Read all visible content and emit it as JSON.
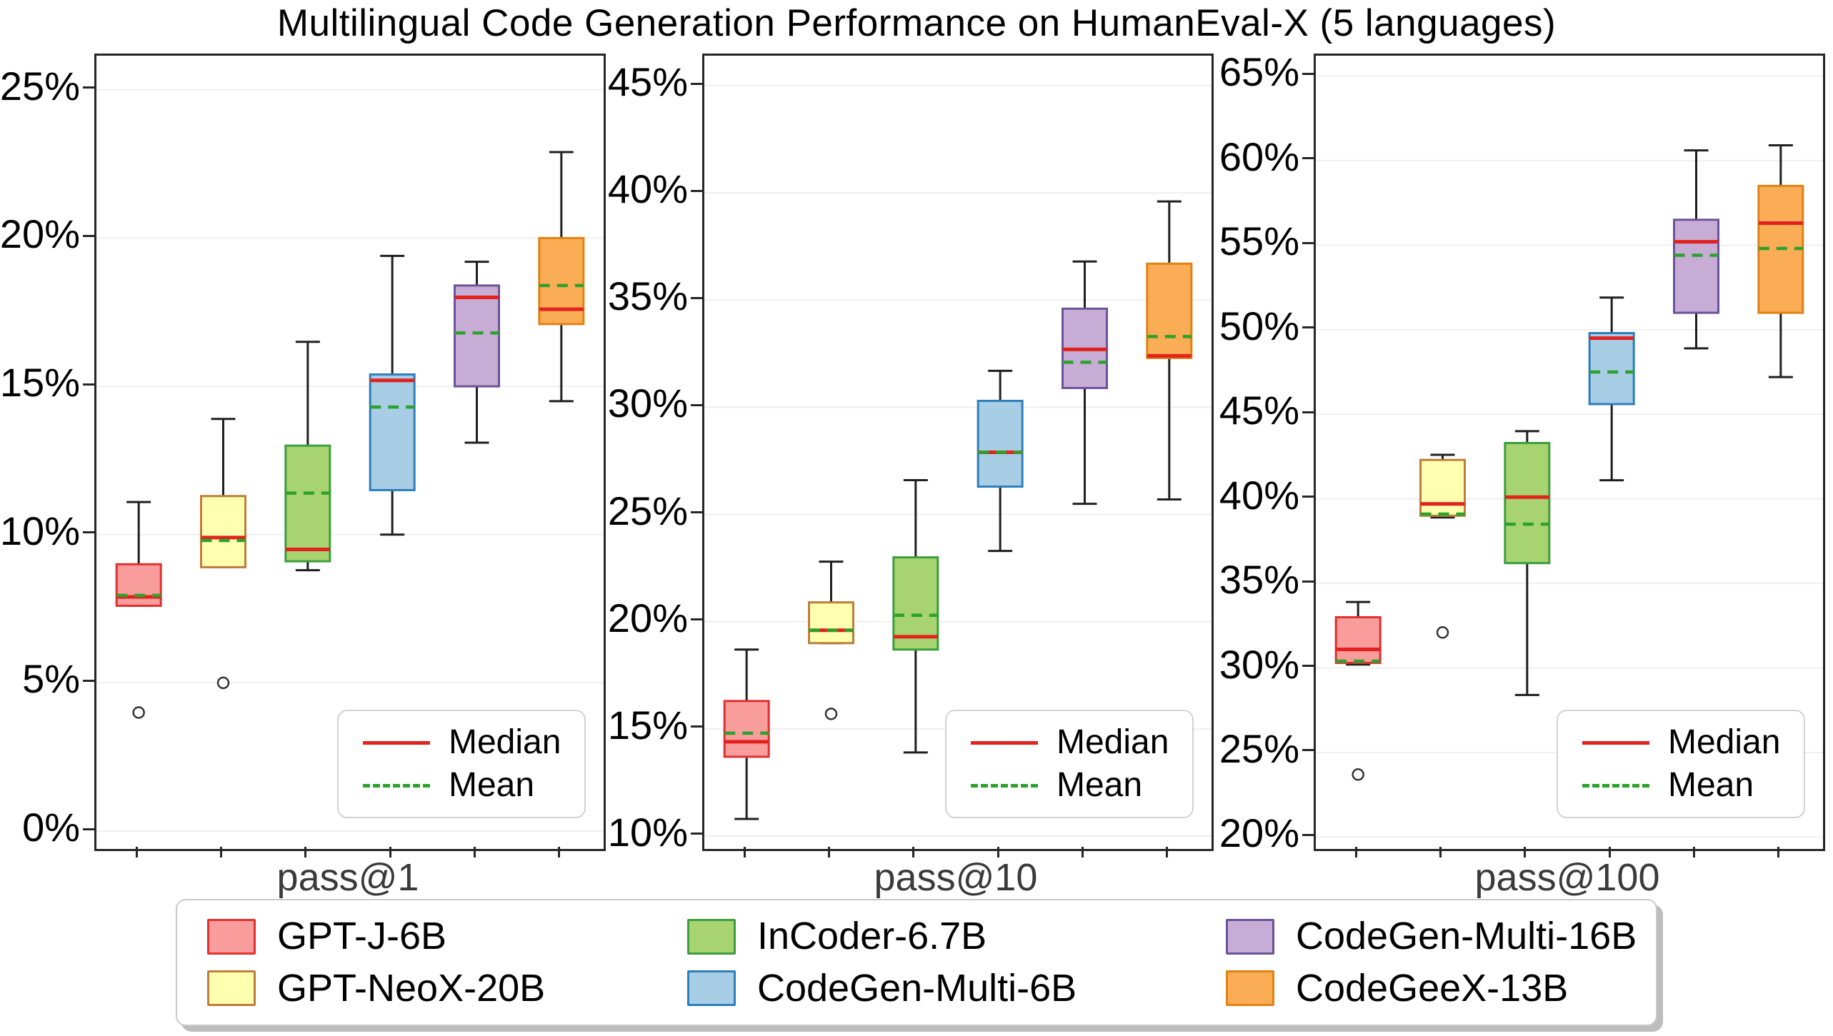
{
  "title": "Multilingual Code Generation Performance on HumanEval-X (5 languages)",
  "inner_legend": {
    "median_label": "Median",
    "mean_label": "Mean"
  },
  "style": {
    "median_color": "#e3211f",
    "mean_color": "#2ca22c",
    "whisker_color": "#1f1f1f",
    "grid_color": "#efefef",
    "spine_color": "#262626",
    "flier_edge_color": "#333333"
  },
  "legend": {
    "models": [
      {
        "label": "GPT-J-6B",
        "fill": "#f89c9c",
        "edge": "#e03030"
      },
      {
        "label": "GPT-NeoX-20B",
        "fill": "#ffffb0",
        "edge": "#be7d3c"
      },
      {
        "label": "InCoder-6.7B",
        "fill": "#a7d470",
        "edge": "#3c9d3c"
      },
      {
        "label": "CodeGen-Multi-6B",
        "fill": "#a8cee5",
        "edge": "#2e7ebc"
      },
      {
        "label": "CodeGen-Multi-16B",
        "fill": "#c7add6",
        "edge": "#6b5399"
      },
      {
        "label": "CodeGeeX-13B",
        "fill": "#fbad55",
        "edge": "#e08214"
      }
    ],
    "column_order": [
      [
        0,
        1
      ],
      [
        2,
        3
      ],
      [
        4,
        5
      ]
    ]
  },
  "chart_data": [
    {
      "type": "box",
      "xlabel": "pass@1",
      "ylim": [
        -0.6,
        26.15
      ],
      "yticks": [
        0,
        5,
        10,
        15,
        20,
        25
      ],
      "yticklabels": [
        "0%",
        "5%",
        "10%",
        "15%",
        "20%",
        "25%"
      ],
      "grid": true,
      "legend_position": "lower right",
      "categories": [
        "GPT-J-6B",
        "GPT-NeoX-20B",
        "InCoder-6.7B",
        "CodeGen-Multi-6B",
        "CodeGen-Multi-16B",
        "CodeGeeX-13B"
      ],
      "boxes": [
        {
          "model": "GPT-J-6B",
          "whislo": 7.6,
          "q1": 7.6,
          "med": 7.9,
          "mean": 7.95,
          "q3": 9.0,
          "whishi": 11.1,
          "fliers": [
            4.0
          ]
        },
        {
          "model": "GPT-NeoX-20B",
          "whislo": 8.9,
          "q1": 8.9,
          "med": 9.9,
          "mean": 9.8,
          "q3": 11.3,
          "whishi": 13.9,
          "fliers": [
            5.0
          ]
        },
        {
          "model": "InCoder-6.7B",
          "whislo": 8.8,
          "q1": 9.1,
          "med": 9.5,
          "mean": 11.4,
          "q3": 13.0,
          "whishi": 16.5,
          "fliers": []
        },
        {
          "model": "CodeGen-Multi-6B",
          "whislo": 10.0,
          "q1": 11.5,
          "med": 15.2,
          "mean": 14.3,
          "q3": 15.4,
          "whishi": 19.4,
          "fliers": []
        },
        {
          "model": "CodeGen-Multi-16B",
          "whislo": 13.1,
          "q1": 15.0,
          "med": 18.0,
          "mean": 16.8,
          "q3": 18.4,
          "whishi": 19.2,
          "fliers": []
        },
        {
          "model": "CodeGeeX-13B",
          "whislo": 14.5,
          "q1": 17.1,
          "med": 17.6,
          "mean": 18.4,
          "q3": 20.0,
          "whishi": 22.9,
          "fliers": []
        }
      ]
    },
    {
      "type": "box",
      "xlabel": "pass@10",
      "ylim": [
        9.4,
        46.4
      ],
      "yticks": [
        10,
        15,
        20,
        25,
        30,
        35,
        40,
        45
      ],
      "yticklabels": [
        "10%",
        "15%",
        "20%",
        "25%",
        "30%",
        "35%",
        "40%",
        "45%"
      ],
      "grid": true,
      "legend_position": "lower right",
      "categories": [
        "GPT-J-6B",
        "GPT-NeoX-20B",
        "InCoder-6.7B",
        "CodeGen-Multi-6B",
        "CodeGen-Multi-16B",
        "CodeGeeX-13B"
      ],
      "boxes": [
        {
          "model": "GPT-J-6B",
          "whislo": 10.8,
          "q1": 13.7,
          "med": 14.4,
          "mean": 14.8,
          "q3": 16.3,
          "whishi": 18.7,
          "fliers": []
        },
        {
          "model": "GPT-NeoX-20B",
          "whislo": 19.0,
          "q1": 19.0,
          "med": 19.6,
          "mean": 19.6,
          "q3": 20.9,
          "whishi": 22.8,
          "fliers": [
            15.7
          ]
        },
        {
          "model": "InCoder-6.7B",
          "whislo": 13.9,
          "q1": 18.7,
          "med": 19.3,
          "mean": 20.3,
          "q3": 23.0,
          "whishi": 26.6,
          "fliers": []
        },
        {
          "model": "CodeGen-Multi-6B",
          "whislo": 23.3,
          "q1": 26.3,
          "med": 27.9,
          "mean": 27.9,
          "q3": 30.3,
          "whishi": 31.7,
          "fliers": []
        },
        {
          "model": "CodeGen-Multi-16B",
          "whislo": 25.5,
          "q1": 30.9,
          "med": 32.7,
          "mean": 32.1,
          "q3": 34.6,
          "whishi": 36.8,
          "fliers": []
        },
        {
          "model": "CodeGeeX-13B",
          "whislo": 25.7,
          "q1": 32.3,
          "med": 32.4,
          "mean": 33.3,
          "q3": 36.7,
          "whishi": 39.6,
          "fliers": []
        }
      ]
    },
    {
      "type": "box",
      "xlabel": "pass@100",
      "ylim": [
        19.3,
        66.2
      ],
      "yticks": [
        20,
        25,
        30,
        35,
        40,
        45,
        50,
        55,
        60,
        65
      ],
      "yticklabels": [
        "20%",
        "25%",
        "30%",
        "35%",
        "40%",
        "45%",
        "50%",
        "55%",
        "60%",
        "65%"
      ],
      "grid": true,
      "legend_position": "lower right",
      "categories": [
        "GPT-J-6B",
        "GPT-NeoX-20B",
        "InCoder-6.7B",
        "CodeGen-Multi-6B",
        "CodeGen-Multi-16B",
        "CodeGeeX-13B"
      ],
      "boxes": [
        {
          "model": "GPT-J-6B",
          "whislo": 30.2,
          "q1": 30.3,
          "med": 31.1,
          "mean": 30.4,
          "q3": 33.0,
          "whishi": 33.9,
          "fliers": [
            23.7
          ]
        },
        {
          "model": "GPT-NeoX-20B",
          "whislo": 38.9,
          "q1": 39.0,
          "med": 39.7,
          "mean": 39.1,
          "q3": 42.3,
          "whishi": 42.6,
          "fliers": [
            32.1
          ]
        },
        {
          "model": "InCoder-6.7B",
          "whislo": 28.4,
          "q1": 36.2,
          "med": 40.1,
          "mean": 38.5,
          "q3": 43.3,
          "whishi": 44.0,
          "fliers": []
        },
        {
          "model": "CodeGen-Multi-6B",
          "whislo": 41.1,
          "q1": 45.6,
          "med": 49.5,
          "mean": 47.5,
          "q3": 49.8,
          "whishi": 51.9,
          "fliers": []
        },
        {
          "model": "CodeGen-Multi-16B",
          "whislo": 48.9,
          "q1": 51.0,
          "med": 55.2,
          "mean": 54.4,
          "q3": 56.5,
          "whishi": 60.6,
          "fliers": []
        },
        {
          "model": "CodeGeeX-13B",
          "whislo": 47.2,
          "q1": 51.0,
          "med": 56.3,
          "mean": 54.8,
          "q3": 58.5,
          "whishi": 60.9,
          "fliers": []
        }
      ]
    }
  ]
}
